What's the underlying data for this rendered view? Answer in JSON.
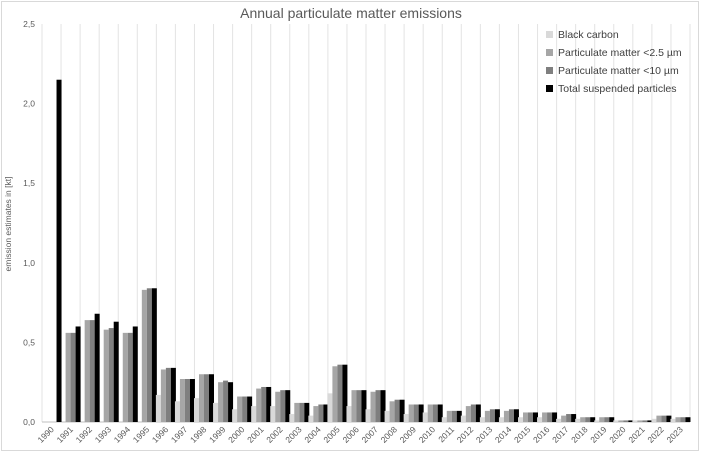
{
  "chart_data": {
    "type": "bar",
    "title": "Annual particulate matter emissions",
    "xlabel": "",
    "ylabel": "emission estimates in [kt]",
    "ylim": [
      0,
      2.5
    ],
    "yticks": [
      "0,0",
      "0,5",
      "1,0",
      "1,5",
      "2,0",
      "2,5"
    ],
    "grid": "vertical",
    "legend_position": "top-right",
    "categories": [
      "1990",
      "1991",
      "1992",
      "1993",
      "1994",
      "1995",
      "1996",
      "1997",
      "1998",
      "1999",
      "2000",
      "2001",
      "2002",
      "2003",
      "2004",
      "2005",
      "2006",
      "2007",
      "2008",
      "2009",
      "2010",
      "2011",
      "2012",
      "2013",
      "2014",
      "2015",
      "2016",
      "2017",
      "2018",
      "2019",
      "2020",
      "2021",
      "2022",
      "2023"
    ],
    "series": [
      {
        "name": "Black carbon",
        "color": "#d9d9d9",
        "values": [
          0,
          0,
          0,
          0,
          0,
          0,
          0.17,
          0.13,
          0.15,
          0.12,
          0.08,
          0.1,
          0.1,
          0.05,
          0.04,
          0.18,
          0.1,
          0.08,
          0.07,
          0.05,
          0.06,
          0.03,
          0.04,
          0.03,
          0.03,
          0.03,
          0.03,
          0.02,
          0.02,
          0.01,
          0.01,
          0.01,
          0.02,
          0.02
        ]
      },
      {
        "name": "Particulate matter <2.5 µm",
        "color": "#a6a6a6",
        "values": [
          0,
          0.56,
          0.64,
          0.58,
          0.56,
          0.83,
          0.33,
          0.27,
          0.3,
          0.25,
          0.16,
          0.21,
          0.19,
          0.12,
          0.1,
          0.35,
          0.2,
          0.19,
          0.13,
          0.11,
          0.11,
          0.07,
          0.1,
          0.07,
          0.07,
          0.06,
          0.06,
          0.04,
          0.03,
          0.03,
          0.01,
          0.01,
          0.04,
          0.03
        ]
      },
      {
        "name": "Particulate matter <10 µm",
        "color": "#7f7f7f",
        "values": [
          0,
          0.56,
          0.64,
          0.59,
          0.56,
          0.84,
          0.34,
          0.27,
          0.3,
          0.26,
          0.16,
          0.22,
          0.2,
          0.12,
          0.11,
          0.36,
          0.2,
          0.2,
          0.14,
          0.11,
          0.11,
          0.07,
          0.11,
          0.08,
          0.08,
          0.06,
          0.06,
          0.05,
          0.03,
          0.03,
          0.01,
          0.01,
          0.04,
          0.03
        ]
      },
      {
        "name": "Total suspended particles",
        "color": "#000000",
        "values": [
          2.15,
          0.6,
          0.68,
          0.63,
          0.6,
          0.84,
          0.34,
          0.27,
          0.3,
          0.25,
          0.16,
          0.22,
          0.2,
          0.12,
          0.11,
          0.36,
          0.2,
          0.2,
          0.14,
          0.11,
          0.11,
          0.07,
          0.11,
          0.08,
          0.08,
          0.06,
          0.06,
          0.05,
          0.03,
          0.03,
          0.01,
          0.01,
          0.04,
          0.03
        ]
      }
    ]
  }
}
